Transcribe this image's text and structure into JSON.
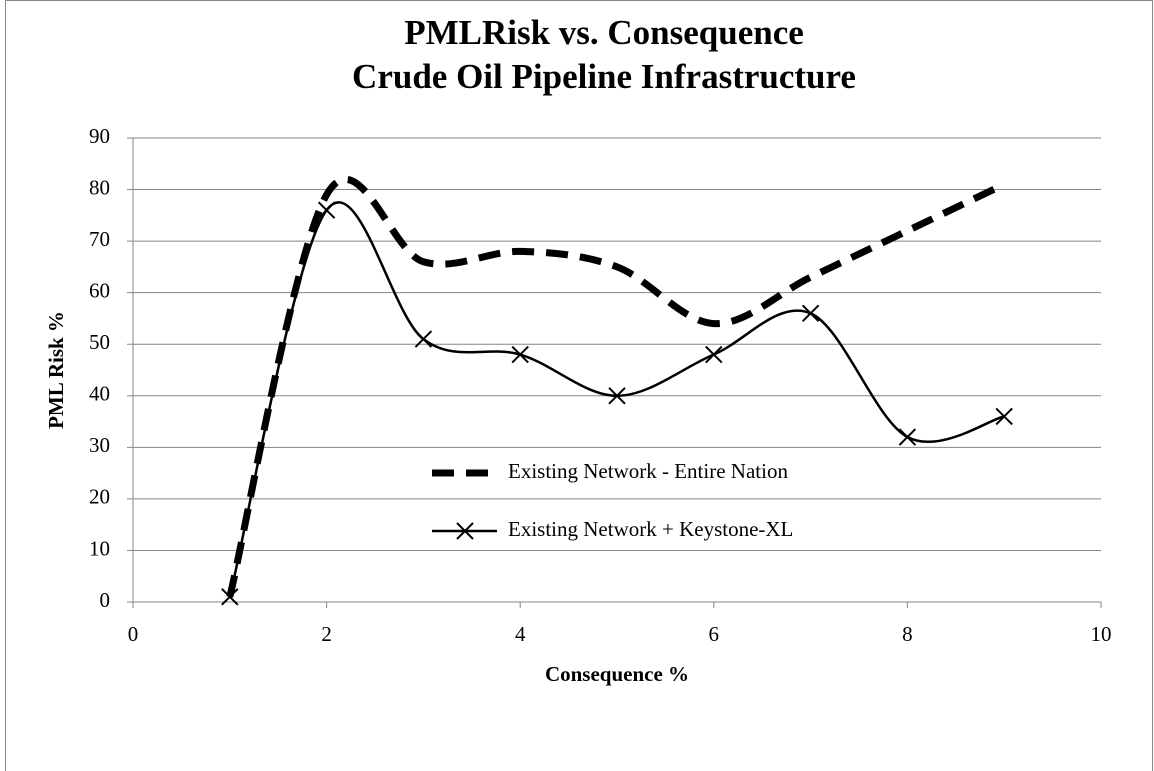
{
  "chart_data": {
    "type": "line",
    "title": "PMLRisk vs. Consequence",
    "subtitle": "Crude Oil Pipeline Infrastructure",
    "x_label": "Consequence %",
    "y_label": "PML Risk %",
    "x": [
      1,
      2,
      3,
      4,
      5,
      6,
      7,
      8,
      9
    ],
    "series": [
      {
        "name": "Existing Network - Entire Nation",
        "color": "#000000",
        "dashed": true,
        "marker": "none",
        "values": [
          1,
          79,
          66,
          68,
          65,
          54,
          63,
          72,
          81
        ]
      },
      {
        "name": "Existing Network + Keystone-XL",
        "color": "#000000",
        "dashed": false,
        "marker": "x",
        "values": [
          1,
          76,
          51,
          48,
          40,
          48,
          56,
          32,
          36
        ]
      }
    ],
    "xlim": [
      0,
      10
    ],
    "xticks": [
      0,
      2,
      4,
      6,
      8,
      10
    ],
    "ylim": [
      0,
      90
    ],
    "yticks": [
      0,
      10,
      20,
      30,
      40,
      50,
      60,
      70,
      80,
      90
    ],
    "grid": true,
    "smooth": true
  }
}
